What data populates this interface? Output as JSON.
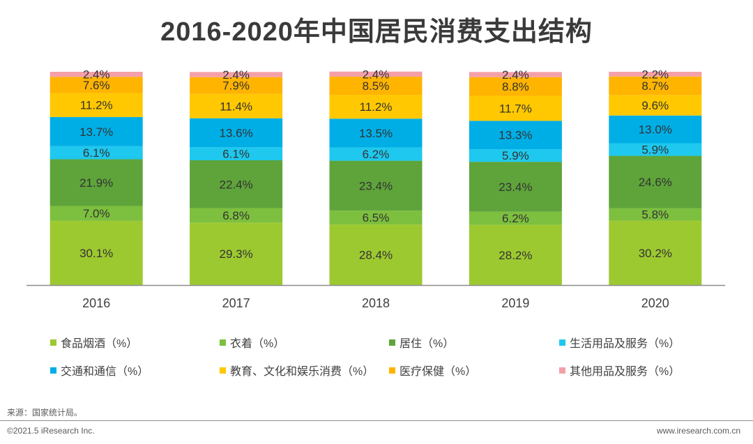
{
  "chart_data": {
    "type": "bar",
    "stacked": true,
    "title": "2016-2020年中国居民消费支出结构",
    "xlabel": "",
    "ylabel": "",
    "ylim": [
      0,
      100
    ],
    "categories": [
      "2016",
      "2017",
      "2018",
      "2019",
      "2020"
    ],
    "series": [
      {
        "name": "食品烟酒（%）",
        "color": "#9dc930",
        "values": [
          30.1,
          29.3,
          28.4,
          28.2,
          30.2
        ]
      },
      {
        "name": "衣着（%）",
        "color": "#7dbf3e",
        "values": [
          7.0,
          6.8,
          6.5,
          6.2,
          5.8
        ]
      },
      {
        "name": "居住（%）",
        "color": "#5ea43a",
        "values": [
          21.9,
          22.4,
          23.4,
          23.4,
          24.6
        ]
      },
      {
        "name": "生活用品及服务（%）",
        "color": "#1ec8ee",
        "values": [
          6.1,
          6.1,
          6.2,
          5.9,
          5.9
        ]
      },
      {
        "name": "交通和通信（%）",
        "color": "#00aee6",
        "values": [
          13.7,
          13.6,
          13.5,
          13.3,
          13.0
        ]
      },
      {
        "name": "教育、文化和娱乐消费（%）",
        "color": "#ffc800",
        "values": [
          11.2,
          11.4,
          11.2,
          11.7,
          9.6
        ]
      },
      {
        "name": "医疗保健（%）",
        "color": "#ffb400",
        "values": [
          7.6,
          7.9,
          8.5,
          8.8,
          8.7
        ]
      },
      {
        "name": "其他用品及服务（%）",
        "color": "#f4a0a8",
        "values": [
          2.4,
          2.4,
          2.4,
          2.4,
          2.2
        ]
      }
    ],
    "legend_position": "bottom"
  },
  "source": "来源：国家统计局。",
  "footer": {
    "copyright": "©2021.5 iResearch Inc.",
    "website": "www.iresearch.com.cn"
  }
}
